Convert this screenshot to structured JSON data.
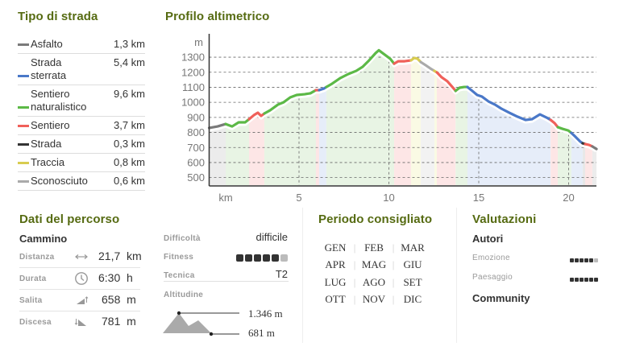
{
  "legend": {
    "title": "Tipo di strada",
    "items": [
      {
        "label": "Asfalto",
        "value": "1,3 km",
        "color": "#7a7a7a"
      },
      {
        "label": "Strada\nsterrata",
        "value": "5,4 km",
        "color": "#4a78c8"
      },
      {
        "label": "Sentiero\nnaturalistico",
        "value": "9,6 km",
        "color": "#5cb947"
      },
      {
        "label": "Sentiero",
        "value": "3,7 km",
        "color": "#f0605a"
      },
      {
        "label": "Strada",
        "value": "0,3 km",
        "color": "#333333"
      },
      {
        "label": "Traccia",
        "value": "0,8 km",
        "color": "#d8cc50"
      },
      {
        "label": "Sconosciuto",
        "value": "0,6 km",
        "color": "#aaaaaa"
      }
    ]
  },
  "profile": {
    "title": "Profilo altimetrico"
  },
  "chart_data": {
    "type": "area",
    "title": "Profilo altimetrico",
    "xlabel": "km",
    "ylabel": "m",
    "xlim": [
      0,
      21.7
    ],
    "ylim": [
      450,
      1455
    ],
    "xticks": [
      5,
      10,
      15,
      20
    ],
    "yticks": [
      500,
      600,
      700,
      800,
      900,
      1000,
      1100,
      1200,
      1300
    ],
    "grid": true,
    "colors": {
      "asfalto": {
        "line": "#7a7a7a",
        "fill": "#ececec"
      },
      "sterrata": {
        "line": "#4a78c8",
        "fill": "#e6edf9"
      },
      "naturalistico": {
        "line": "#5cb947",
        "fill": "#e8f4e4"
      },
      "sentiero": {
        "line": "#f0605a",
        "fill": "#fde6e6"
      },
      "strada": {
        "line": "#333333",
        "fill": "#e8e8e8"
      },
      "traccia": {
        "line": "#d8cc50",
        "fill": "#fafae4"
      },
      "sconosciuto": {
        "line": "#aaaaaa",
        "fill": "#f2f2f2"
      }
    },
    "segments": [
      {
        "type": "asfalto",
        "points": [
          [
            0,
            830
          ],
          [
            0.47,
            840
          ],
          [
            0.92,
            856
          ]
        ]
      },
      {
        "type": "naturalistico",
        "points": [
          [
            0.92,
            856
          ],
          [
            1.28,
            840
          ],
          [
            1.64,
            867
          ],
          [
            2.0,
            867
          ],
          [
            2.22,
            888
          ]
        ]
      },
      {
        "type": "sentiero",
        "points": [
          [
            2.22,
            888
          ],
          [
            2.49,
            915
          ],
          [
            2.71,
            931
          ],
          [
            2.89,
            910
          ],
          [
            3.07,
            926
          ]
        ]
      },
      {
        "type": "naturalistico",
        "points": [
          [
            3.07,
            926
          ],
          [
            3.39,
            947
          ],
          [
            3.83,
            985
          ],
          [
            4.15,
            1001
          ],
          [
            4.51,
            1033
          ],
          [
            4.87,
            1049
          ],
          [
            5.31,
            1054
          ],
          [
            5.63,
            1060
          ],
          [
            5.94,
            1081
          ]
        ]
      },
      {
        "type": "sentiero",
        "points": [
          [
            5.94,
            1081
          ],
          [
            6.12,
            1081
          ]
        ]
      },
      {
        "type": "sterrata",
        "points": [
          [
            6.12,
            1081
          ],
          [
            6.39,
            1092
          ],
          [
            6.52,
            1102
          ]
        ]
      },
      {
        "type": "naturalistico",
        "points": [
          [
            6.52,
            1102
          ],
          [
            6.84,
            1124
          ],
          [
            7.29,
            1161
          ],
          [
            7.74,
            1188
          ],
          [
            8.18,
            1209
          ],
          [
            8.54,
            1236
          ],
          [
            8.9,
            1279
          ],
          [
            9.26,
            1327
          ],
          [
            9.44,
            1346
          ],
          [
            9.71,
            1322
          ],
          [
            10.07,
            1290
          ],
          [
            10.29,
            1257
          ]
        ]
      },
      {
        "type": "sentiero",
        "points": [
          [
            10.29,
            1257
          ],
          [
            10.52,
            1273
          ],
          [
            10.87,
            1273
          ],
          [
            11.23,
            1279
          ]
        ]
      },
      {
        "type": "traccia",
        "points": [
          [
            11.23,
            1279
          ],
          [
            11.41,
            1295
          ],
          [
            11.59,
            1290
          ],
          [
            11.77,
            1268
          ]
        ]
      },
      {
        "type": "sconosciuto",
        "points": [
          [
            11.77,
            1268
          ],
          [
            12.04,
            1247
          ],
          [
            12.31,
            1225
          ],
          [
            12.53,
            1209
          ]
        ]
      },
      {
        "type": "traccia",
        "points": [
          [
            12.53,
            1209
          ],
          [
            12.67,
            1199
          ]
        ]
      },
      {
        "type": "sentiero",
        "points": [
          [
            12.67,
            1199
          ],
          [
            12.94,
            1166
          ],
          [
            13.25,
            1140
          ],
          [
            13.57,
            1097
          ],
          [
            13.71,
            1076
          ]
        ]
      },
      {
        "type": "naturalistico",
        "points": [
          [
            13.71,
            1076
          ],
          [
            13.93,
            1097
          ],
          [
            14.19,
            1102
          ],
          [
            14.37,
            1102
          ]
        ]
      },
      {
        "type": "sterrata",
        "points": [
          [
            14.37,
            1102
          ],
          [
            14.64,
            1076
          ],
          [
            14.91,
            1049
          ],
          [
            15.18,
            1038
          ],
          [
            15.54,
            1006
          ],
          [
            15.9,
            985
          ],
          [
            16.26,
            958
          ],
          [
            16.7,
            931
          ],
          [
            17.15,
            905
          ],
          [
            17.6,
            883
          ],
          [
            17.96,
            888
          ],
          [
            18.4,
            920
          ],
          [
            18.77,
            899
          ],
          [
            19.0,
            883
          ]
        ]
      },
      {
        "type": "sentiero",
        "points": [
          [
            19.0,
            883
          ],
          [
            19.22,
            862
          ],
          [
            19.4,
            835
          ]
        ]
      },
      {
        "type": "naturalistico",
        "points": [
          [
            19.4,
            835
          ],
          [
            19.66,
            824
          ],
          [
            19.98,
            813
          ],
          [
            20.15,
            797
          ]
        ]
      },
      {
        "type": "sterrata",
        "points": [
          [
            20.15,
            797
          ],
          [
            20.38,
            771
          ],
          [
            20.65,
            739
          ],
          [
            20.78,
            728
          ]
        ]
      },
      {
        "type": "strada",
        "points": [
          [
            20.78,
            728
          ],
          [
            20.92,
            723
          ]
        ]
      },
      {
        "type": "sentiero",
        "points": [
          [
            20.92,
            723
          ],
          [
            21.14,
            717
          ],
          [
            21.32,
            707
          ]
        ]
      },
      {
        "type": "asfalto",
        "points": [
          [
            21.32,
            707
          ],
          [
            21.55,
            690
          ]
        ]
      }
    ]
  },
  "route": {
    "title": "Dati del percorso",
    "mode": "Cammino",
    "stats": [
      {
        "label": "Distanza",
        "icon": "distance-icon",
        "value": "21,7",
        "unit": "km"
      },
      {
        "label": "Durata",
        "icon": "clock-icon",
        "value": "6:30",
        "unit": "h"
      },
      {
        "label": "Salita",
        "icon": "ascent-icon",
        "value": "658",
        "unit": "m"
      },
      {
        "label": "Discesa",
        "icon": "descent-icon",
        "value": "781",
        "unit": "m"
      }
    ],
    "difficulty_label": "Difficoltà",
    "difficulty_value": "difficile",
    "fitness_label": "Fitness",
    "fitness": {
      "value": 5,
      "max": 6
    },
    "technique_label": "Tecnica",
    "technique_value": "T2",
    "altitude_label": "Altitudine",
    "altitude_max": "1.346 m",
    "altitude_min": "681 m"
  },
  "season": {
    "title": "Periodo consigliato",
    "months": [
      [
        "GEN",
        "FEB",
        "MAR"
      ],
      [
        "APR",
        "MAG",
        "GIU"
      ],
      [
        "LUG",
        "AGO",
        "SET"
      ],
      [
        "OTT",
        "NOV",
        "DIC"
      ]
    ]
  },
  "ratings": {
    "title": "Valutazioni",
    "authors_label": "Autori",
    "emotion_label": "Emozione",
    "emotion": {
      "value": 5,
      "max": 6
    },
    "landscape_label": "Paesaggio",
    "landscape": {
      "value": 6,
      "max": 6
    },
    "community_label": "Community"
  }
}
